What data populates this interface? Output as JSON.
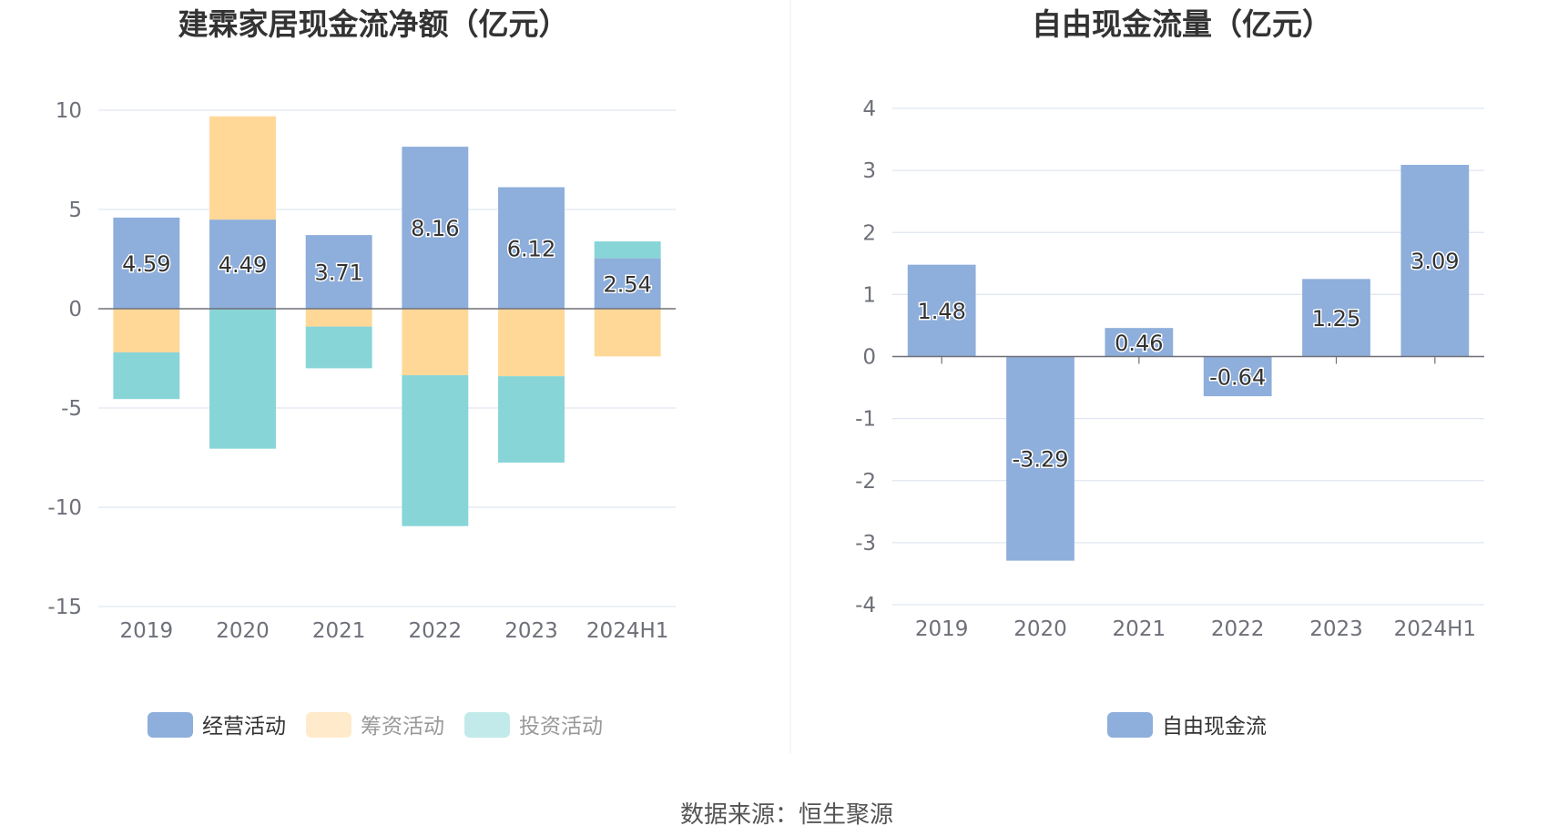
{
  "colors": {
    "operating": "#8eaedb",
    "financing": "#ffd898",
    "investing": "#88d5d8",
    "fcf": "#8eaedb",
    "grid": "#e0e6f1",
    "axis": "#6e7079",
    "legend_inactive_text": "#999999",
    "legend_active_text": "#333333"
  },
  "source": "数据来源：恒生聚源",
  "chart_data": [
    {
      "type": "bar",
      "stacked": true,
      "title": "建霖家居现金流净额（亿元）",
      "categories": [
        "2019",
        "2020",
        "2021",
        "2022",
        "2023",
        "2024H1"
      ],
      "ylim": [
        -15,
        10
      ],
      "yticks": [
        "10",
        "5",
        "0",
        "-5",
        "-10",
        "-15"
      ],
      "grid": true,
      "legend_position": "bottom",
      "series": [
        {
          "name": "经营活动",
          "color": "operating",
          "values": [
            4.59,
            4.49,
            3.71,
            8.16,
            6.12,
            2.54
          ],
          "labeled": true
        },
        {
          "name": "筹资活动",
          "color": "financing",
          "values": [
            -2.2,
            5.2,
            -0.9,
            -3.35,
            -3.4,
            -2.4
          ],
          "labeled": false
        },
        {
          "name": "投资活动",
          "color": "investing",
          "values": [
            -2.35,
            -7.05,
            -2.1,
            -7.6,
            -4.35,
            0.85
          ],
          "labeled": false
        }
      ],
      "labels": [
        "4.59",
        "4.49",
        "3.71",
        "8.16",
        "6.12",
        "2.54"
      ]
    },
    {
      "type": "bar",
      "stacked": false,
      "title": "自由现金流量（亿元）",
      "categories": [
        "2019",
        "2020",
        "2021",
        "2022",
        "2023",
        "2024H1"
      ],
      "ylim": [
        -4,
        4
      ],
      "yticks": [
        "4",
        "3",
        "2",
        "1",
        "0",
        "-1",
        "-2",
        "-3",
        "-4"
      ],
      "grid": true,
      "legend_position": "bottom",
      "series": [
        {
          "name": "自由现金流",
          "color": "fcf",
          "values": [
            1.48,
            -3.29,
            0.46,
            -0.64,
            1.25,
            3.09
          ],
          "labeled": true
        }
      ],
      "labels": [
        "1.48",
        "-3.29",
        "0.46",
        "-0.64",
        "1.25",
        "3.09"
      ]
    }
  ]
}
